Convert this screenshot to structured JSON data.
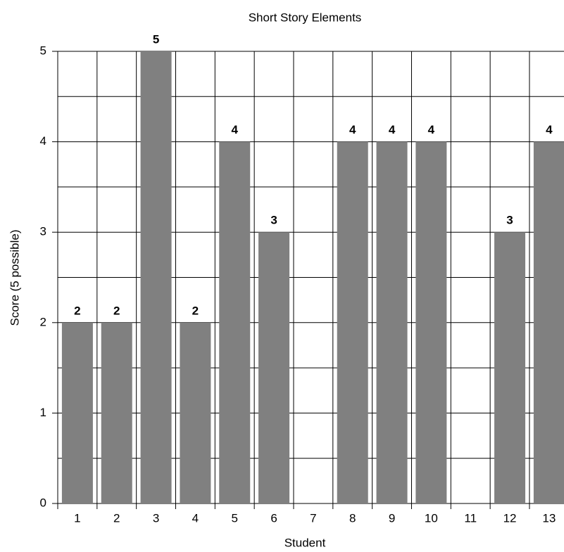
{
  "chart_data": {
    "type": "bar",
    "title": "Short Story Elements",
    "x_label": "Student",
    "y_label": "Score (5 possible)",
    "categories": [
      "1",
      "2",
      "3",
      "4",
      "5",
      "6",
      "7",
      "8",
      "9",
      "10",
      "11",
      "12",
      "13"
    ],
    "values": [
      2,
      2,
      5,
      2,
      4,
      3,
      null,
      4,
      4,
      4,
      null,
      3,
      4
    ],
    "color": "#808080",
    "ylim": [
      0,
      5
    ],
    "yticks": [
      0,
      1,
      2,
      3,
      4,
      5
    ],
    "grid": true
  }
}
